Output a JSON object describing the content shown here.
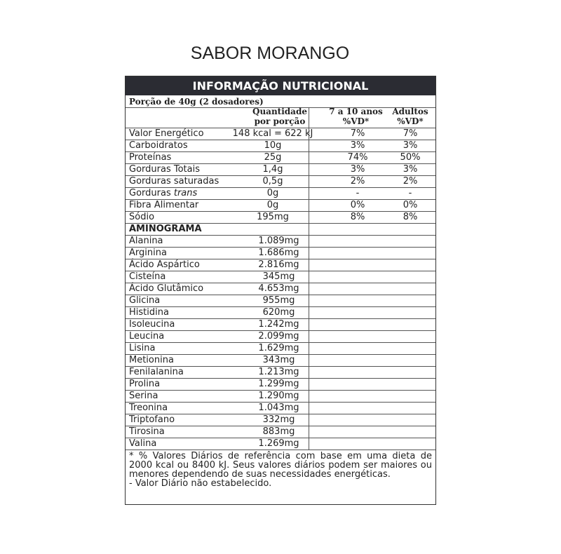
{
  "title": "SABOR MORANGO",
  "table": {
    "header": "INFORMAÇÃO NUTRICIONAL",
    "serving": "Porção de 40g (2 dosadores)",
    "columns": [
      "Quantidade por porção",
      "7 a 10 anos %VD*",
      "Adultos %VD*"
    ],
    "rows": [
      {
        "name": "Valor Energético",
        "quantity": "148 kcal = 622 kJ",
        "vd_kids": "7%",
        "vd_adults": "7%"
      },
      {
        "name": "Carboidratos",
        "quantity": "10g",
        "vd_kids": "3%",
        "vd_adults": "3%"
      },
      {
        "name": "Proteínas",
        "quantity": "25g",
        "vd_kids": "74%",
        "vd_adults": "50%"
      },
      {
        "name": "Gorduras Totais",
        "quantity": "1,4g",
        "vd_kids": "3%",
        "vd_adults": "3%"
      },
      {
        "name": "Gorduras saturadas",
        "quantity": "0,5g",
        "vd_kids": "2%",
        "vd_adults": "2%"
      },
      {
        "name": "Gorduras",
        "name_italic": "trans",
        "quantity": "0g",
        "vd_kids": "-",
        "vd_adults": "-"
      },
      {
        "name": "Fibra Alimentar",
        "quantity": "0g",
        "vd_kids": "0%",
        "vd_adults": "0%"
      },
      {
        "name": "Sódio",
        "quantity": "195mg",
        "vd_kids": "8%",
        "vd_adults": "8%"
      }
    ],
    "amino_title": "AMINOGRAMA",
    "amino": [
      {
        "name": "Alanina",
        "quantity": "1.089mg"
      },
      {
        "name": "Arginina",
        "quantity": "1.686mg"
      },
      {
        "name": "Ácido Aspártico",
        "quantity": "2.816mg"
      },
      {
        "name": "Cisteína",
        "quantity": "345mg"
      },
      {
        "name": "Ácido Glutâmico",
        "quantity": "4.653mg"
      },
      {
        "name": "Glicina",
        "quantity": "955mg"
      },
      {
        "name": "Histidina",
        "quantity": "620mg"
      },
      {
        "name": "Isoleucina",
        "quantity": "1.242mg"
      },
      {
        "name": "Leucina",
        "quantity": "2.099mg"
      },
      {
        "name": "Lisina",
        "quantity": "1.629mg"
      },
      {
        "name": "Metionina",
        "quantity": "343mg"
      },
      {
        "name": "Fenilalanina",
        "quantity": "1.213mg"
      },
      {
        "name": "Prolina",
        "quantity": "1.299mg"
      },
      {
        "name": "Serina",
        "quantity": "1.290mg"
      },
      {
        "name": "Treonina",
        "quantity": "1.043mg"
      },
      {
        "name": "Triptofano",
        "quantity": "332mg"
      },
      {
        "name": "Tirosina",
        "quantity": "883mg"
      },
      {
        "name": "Valina",
        "quantity": "1.269mg"
      }
    ],
    "footnotes": [
      "* % Valores Diários de referência com base em uma dieta de 2000 kcal ou 8400 kJ. Seus valores diários podem ser maiores ou menores dependendo de suas necessidades energéticas.",
      "- Valor Diário não estabelecido."
    ]
  }
}
